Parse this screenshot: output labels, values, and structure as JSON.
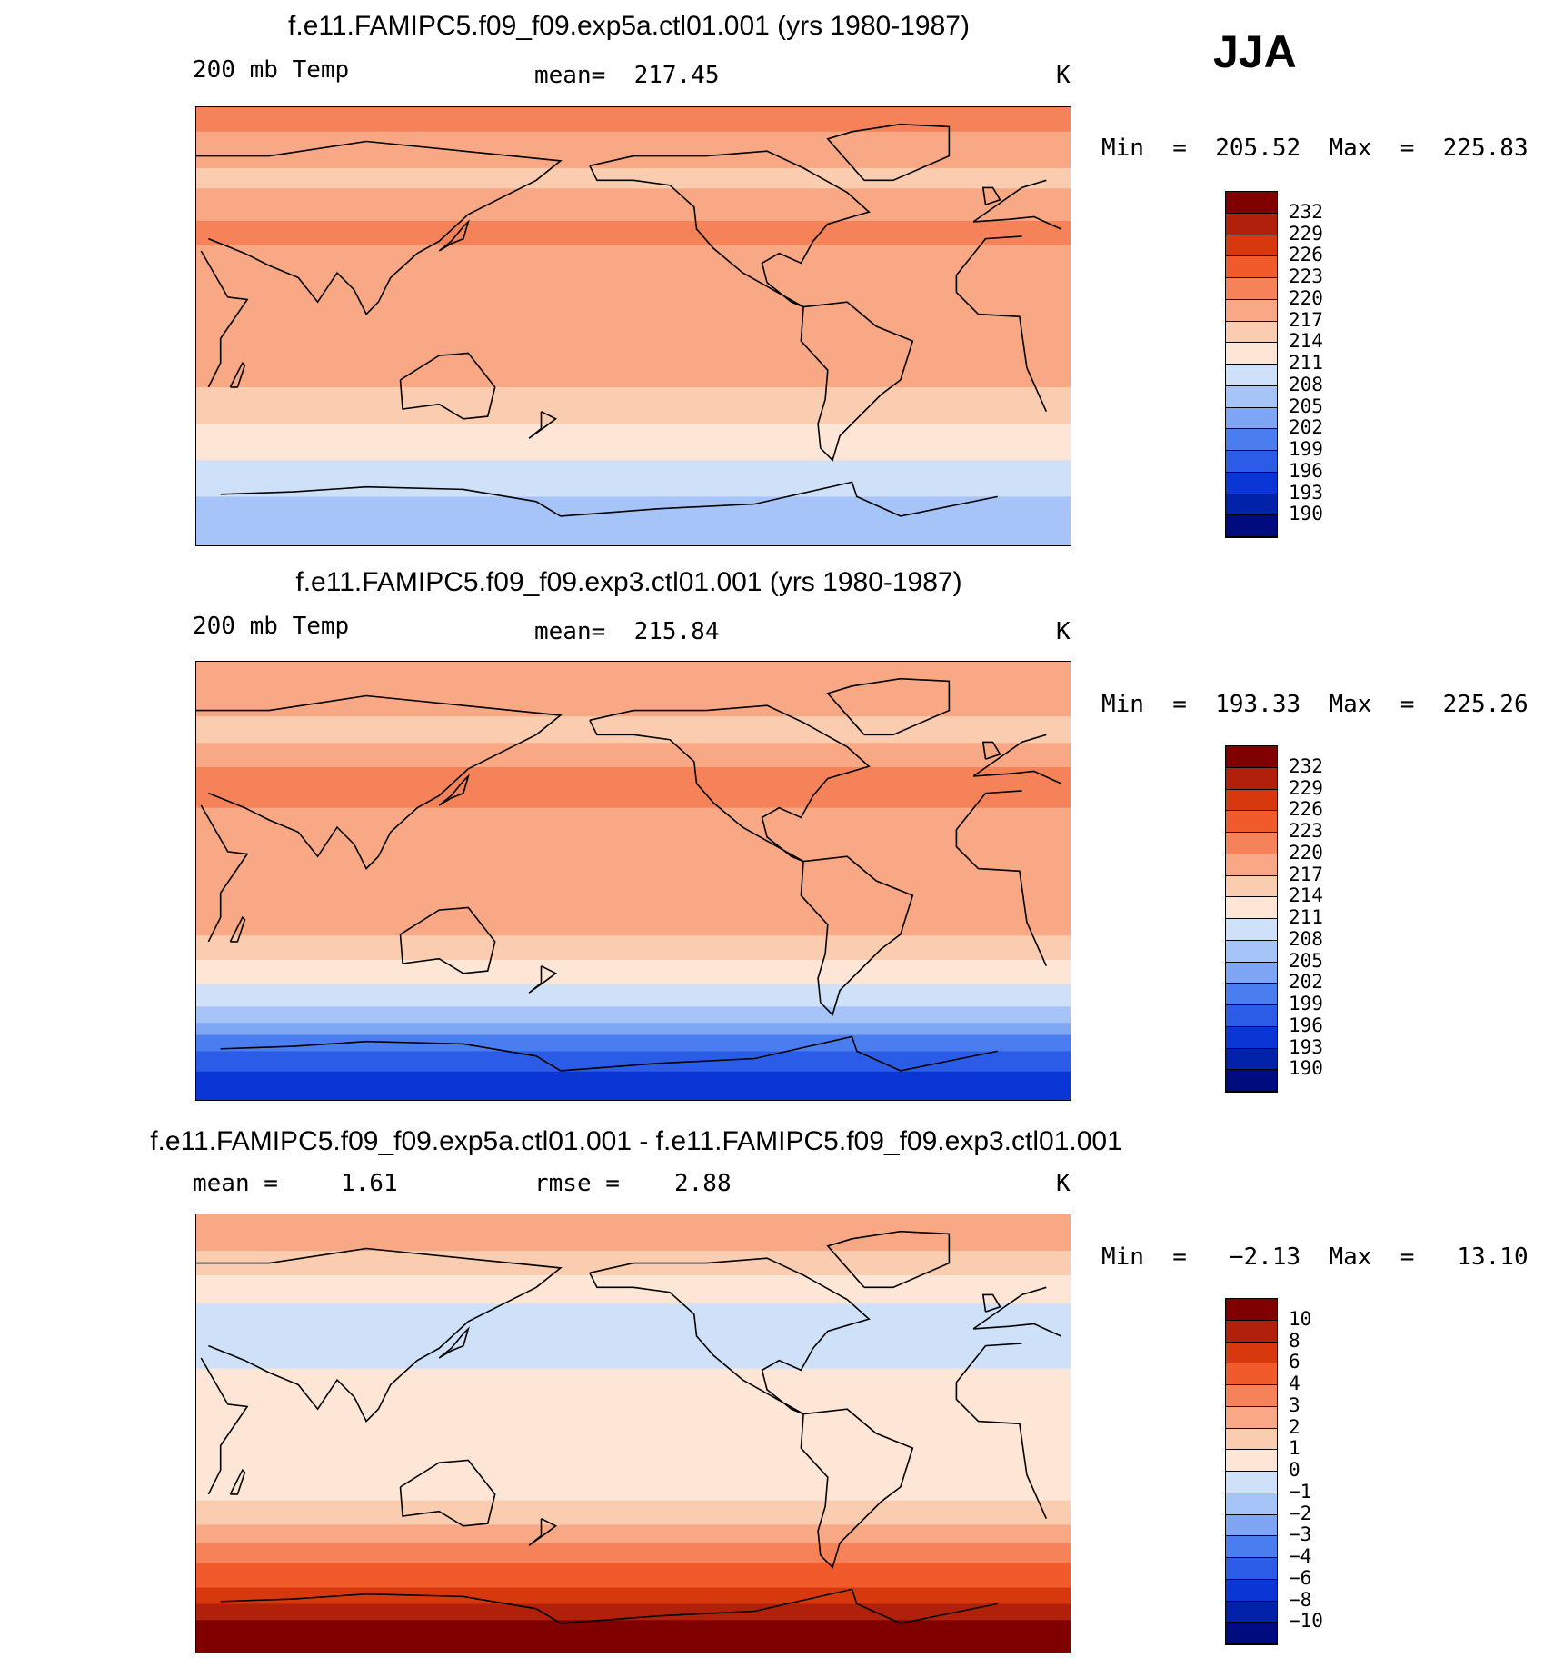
{
  "season": "JJA",
  "units": "K",
  "palette_temp": [
    "#000c7d",
    "#0022a8",
    "#0a36d6",
    "#2a5ce8",
    "#4a7df0",
    "#7ea6f5",
    "#a6c4f8",
    "#cfe1f8",
    "#fde6d6",
    "#fbcdb0",
    "#f8a884",
    "#f58259",
    "#f15a2a",
    "#d8380e",
    "#b0200a",
    "#800000"
  ],
  "palette_diff": [
    "#000c7d",
    "#0022a8",
    "#0a36d6",
    "#2a5ce8",
    "#4a7df0",
    "#7ea6f5",
    "#a6c4f8",
    "#cfe1f8",
    "#fde6d6",
    "#fbcdb0",
    "#f8a884",
    "#f58259",
    "#f15a2a",
    "#d8380e",
    "#b0200a",
    "#800000"
  ],
  "chart_data": [
    {
      "type": "heatmap",
      "title": "f.e11.FAMIPC5.f09_f09.exp5a.ctl01.001 (yrs 1980-1987)",
      "variable": "200 mb Temp",
      "mean_text": "mean=  217.45",
      "units": "K",
      "minmax_text": "Min  =  205.52  Max  =  225.83",
      "min": 205.52,
      "max": 225.83,
      "mean": 217.45,
      "colorbar_levels": [
        "232",
        "229",
        "226",
        "223",
        "220",
        "217",
        "214",
        "211",
        "208",
        "205",
        "202",
        "199",
        "196",
        "193",
        "190"
      ],
      "zonal_profile": [
        {
          "lat": 90,
          "value": 222
        },
        {
          "lat": 75,
          "value": 219
        },
        {
          "lat": 60,
          "value": 216
        },
        {
          "lat": 40,
          "value": 221
        },
        {
          "lat": 20,
          "value": 218
        },
        {
          "lat": 0,
          "value": 217
        },
        {
          "lat": -20,
          "value": 218
        },
        {
          "lat": -35,
          "value": 215
        },
        {
          "lat": -50,
          "value": 212
        },
        {
          "lat": -65,
          "value": 209
        },
        {
          "lat": -80,
          "value": 206
        },
        {
          "lat": -90,
          "value": 206
        }
      ]
    },
    {
      "type": "heatmap",
      "title": "f.e11.FAMIPC5.f09_f09.exp3.ctl01.001 (yrs 1980-1987)",
      "variable": "200 mb Temp",
      "mean_text": "mean=  215.84",
      "units": "K",
      "minmax_text": "Min  =  193.33  Max  =  225.26",
      "min": 193.33,
      "max": 225.26,
      "mean": 215.84,
      "colorbar_levels": [
        "232",
        "229",
        "226",
        "223",
        "220",
        "217",
        "214",
        "211",
        "208",
        "205",
        "202",
        "199",
        "196",
        "193",
        "190"
      ],
      "zonal_profile": [
        {
          "lat": 90,
          "value": 220
        },
        {
          "lat": 75,
          "value": 218
        },
        {
          "lat": 60,
          "value": 216
        },
        {
          "lat": 40,
          "value": 222
        },
        {
          "lat": 20,
          "value": 218
        },
        {
          "lat": 0,
          "value": 217
        },
        {
          "lat": -20,
          "value": 218
        },
        {
          "lat": -35,
          "value": 213
        },
        {
          "lat": -50,
          "value": 209
        },
        {
          "lat": -60,
          "value": 204
        },
        {
          "lat": -70,
          "value": 199
        },
        {
          "lat": -80,
          "value": 195
        },
        {
          "lat": -90,
          "value": 194
        }
      ]
    },
    {
      "type": "heatmap",
      "title": "f.e11.FAMIPC5.f09_f09.exp5a.ctl01.001 - f.e11.FAMIPC5.f09_f09.exp3.ctl01.001",
      "mean_label": "mean =",
      "mean_value": "1.61",
      "rmse_label": "rmse =",
      "rmse_value": "2.88",
      "units": "K",
      "minmax_text": "Min  =   −2.13  Max  =   13.10",
      "min": -2.13,
      "max": 13.1,
      "mean": 1.61,
      "rmse": 2.88,
      "colorbar_levels": [
        "10",
        "8",
        "6",
        "4",
        "3",
        "2",
        "1",
        "0",
        "−1",
        "−2",
        "−3",
        "−4",
        "−6",
        "−8",
        "−10"
      ],
      "zonal_profile": [
        {
          "lat": 90,
          "value": 2.5
        },
        {
          "lat": 75,
          "value": 2
        },
        {
          "lat": 60,
          "value": 0.5
        },
        {
          "lat": 40,
          "value": -0.8
        },
        {
          "lat": 20,
          "value": 0.5
        },
        {
          "lat": 0,
          "value": 0.5
        },
        {
          "lat": -20,
          "value": 0.5
        },
        {
          "lat": -35,
          "value": 1.5
        },
        {
          "lat": -50,
          "value": 3.5
        },
        {
          "lat": -60,
          "value": 5
        },
        {
          "lat": -70,
          "value": 8
        },
        {
          "lat": -80,
          "value": 11
        },
        {
          "lat": -90,
          "value": 12
        }
      ]
    }
  ]
}
